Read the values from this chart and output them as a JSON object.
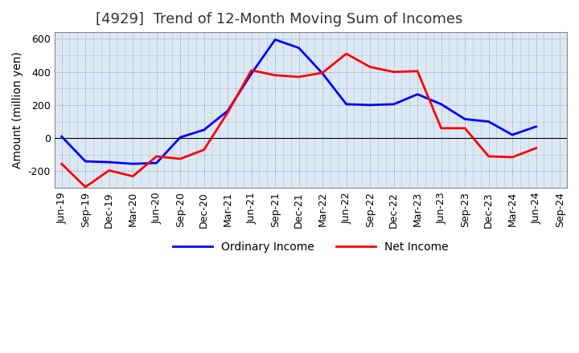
{
  "title": "[4929]  Trend of 12-Month Moving Sum of Incomes",
  "ylabel": "Amount (million yen)",
  "x_labels": [
    "Jun-19",
    "Sep-19",
    "Dec-19",
    "Mar-20",
    "Jun-20",
    "Sep-20",
    "Dec-20",
    "Mar-21",
    "Jun-21",
    "Sep-21",
    "Dec-21",
    "Mar-22",
    "Jun-22",
    "Sep-22",
    "Dec-22",
    "Mar-23",
    "Jun-23",
    "Sep-23",
    "Dec-23",
    "Mar-24",
    "Jun-24",
    "Sep-24"
  ],
  "ordinary_income": [
    10,
    -140,
    -145,
    -155,
    -150,
    5,
    50,
    165,
    390,
    595,
    545,
    390,
    205,
    200,
    205,
    265,
    205,
    115,
    100,
    20,
    70,
    null
  ],
  "net_income": [
    -155,
    -295,
    -195,
    -230,
    -110,
    -125,
    -70,
    155,
    410,
    380,
    370,
    395,
    510,
    430,
    400,
    405,
    60,
    60,
    -110,
    -115,
    -60,
    null
  ],
  "ylim": [
    -300,
    640
  ],
  "yticks": [
    -200,
    0,
    200,
    400,
    600
  ],
  "ordinary_color": "#0000ff",
  "net_color": "#ff0000",
  "background_color": "#ffffff",
  "plot_bg_color": "#dce9f5",
  "grid_color": "#7777aa",
  "title_fontsize": 13,
  "axis_fontsize": 9,
  "legend_fontsize": 10
}
